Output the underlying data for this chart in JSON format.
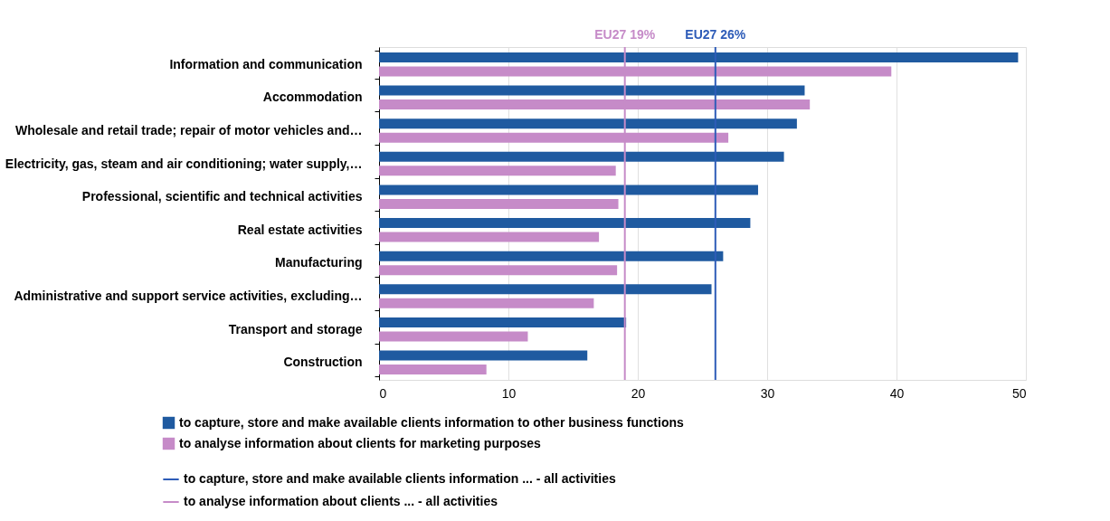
{
  "chart_data": {
    "type": "bar",
    "orientation": "horizontal",
    "categories": [
      "Information and communication",
      "Accommodation",
      "Wholesale and retail trade; repair of motor vehicles and…",
      "Electricity, gas, steam and air conditioning; water supply,…",
      "Professional, scientific and technical activities",
      "Real estate activities",
      "Manufacturing",
      "Administrative and support service activities, excluding…",
      "Transport and storage",
      "Construction"
    ],
    "series": [
      {
        "name": "to capture, store and make available clients information to other business functions",
        "color": "#1f5aa0",
        "values": [
          49.4,
          32.9,
          32.3,
          31.3,
          29.3,
          28.7,
          26.6,
          25.7,
          19.1,
          16.1
        ]
      },
      {
        "name": "to analyse information about clients for marketing purposes",
        "color": "#c68bc8",
        "values": [
          39.6,
          33.3,
          27.0,
          18.3,
          18.5,
          17.0,
          18.4,
          16.6,
          11.5,
          8.3
        ]
      }
    ],
    "ref_lines": [
      {
        "axis": "x",
        "value": 26,
        "label": "to capture, store and make available clients information ... - all activities",
        "color": "#2e5cb8"
      },
      {
        "axis": "x",
        "value": 19,
        "label": "to analyse information about clients ... - all activities",
        "color": "#c68bc8"
      }
    ],
    "annotations": [
      "EU27 26%",
      "EU27 19%"
    ],
    "xlim": [
      0,
      50
    ],
    "xticks": [
      0,
      10,
      20,
      30,
      40,
      50
    ],
    "grid": "x",
    "legend": "bottom"
  }
}
